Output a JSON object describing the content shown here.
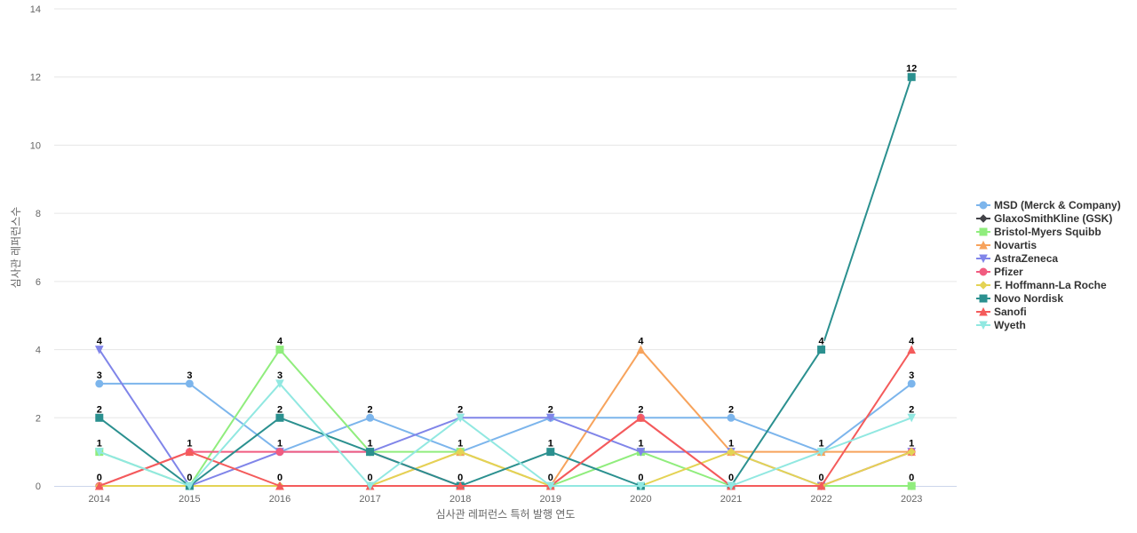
{
  "chart_data": {
    "type": "line",
    "title": "",
    "xlabel": "심사관 레퍼런스 특허 발행 연도",
    "ylabel": "심사관 레퍼런스수",
    "ylim": [
      0,
      14
    ],
    "yticks": [
      0,
      2,
      4,
      6,
      8,
      10,
      12,
      14
    ],
    "grid": true,
    "legend_position": "right",
    "categories": [
      "2014",
      "2015",
      "2016",
      "2017",
      "2018",
      "2019",
      "2020",
      "2021",
      "2022",
      "2023"
    ],
    "series": [
      {
        "name": "MSD (Merck & Company)",
        "color": "#7cb5ec",
        "marker": "circle",
        "values": [
          3,
          3,
          1,
          2,
          1,
          2,
          2,
          2,
          1,
          3
        ]
      },
      {
        "name": "GlaxoSmithKline (GSK)",
        "color": "#434348",
        "marker": "diamond",
        "values": [
          0,
          0,
          0,
          0,
          0,
          0,
          0,
          0,
          0,
          0
        ]
      },
      {
        "name": "Bristol-Myers Squibb",
        "color": "#90ed7d",
        "marker": "square",
        "values": [
          1,
          0,
          4,
          1,
          1,
          0,
          1,
          0,
          0,
          0
        ]
      },
      {
        "name": "Novartis",
        "color": "#f7a35c",
        "marker": "triangle",
        "values": [
          0,
          0,
          0,
          0,
          1,
          0,
          4,
          1,
          1,
          1
        ]
      },
      {
        "name": "AstraZeneca",
        "color": "#8085e9",
        "marker": "triangle-down",
        "values": [
          4,
          0,
          1,
          1,
          2,
          2,
          1,
          1,
          0,
          1
        ]
      },
      {
        "name": "Pfizer",
        "color": "#f15c80",
        "marker": "circle",
        "values": [
          0,
          1,
          1,
          1,
          0,
          0,
          2,
          0,
          0,
          1
        ]
      },
      {
        "name": "F. Hoffmann-La Roche",
        "color": "#e4d354",
        "marker": "diamond",
        "values": [
          0,
          0,
          0,
          0,
          1,
          0,
          0,
          1,
          0,
          1
        ]
      },
      {
        "name": "Novo Nordisk",
        "color": "#2b908f",
        "marker": "square",
        "values": [
          2,
          0,
          2,
          1,
          0,
          1,
          0,
          0,
          4,
          12
        ]
      },
      {
        "name": "Sanofi",
        "color": "#f45b5b",
        "marker": "triangle",
        "values": [
          0,
          1,
          0,
          0,
          0,
          0,
          2,
          0,
          0,
          4
        ]
      },
      {
        "name": "Wyeth",
        "color": "#91e8e1",
        "marker": "triangle-down",
        "values": [
          1,
          0,
          3,
          0,
          2,
          0,
          0,
          0,
          1,
          2
        ]
      }
    ],
    "top_labels": [
      {
        "category": "2014",
        "above": "4",
        "below": "0"
      },
      {
        "category": "2014",
        "mid": [
          "3",
          "2",
          "1"
        ]
      },
      {
        "category": "2015",
        "mid": [
          "3",
          "1"
        ],
        "below": "0"
      },
      {
        "category": "2016",
        "above": "4",
        "mid": [
          "3",
          "1"
        ],
        "below": "0"
      }
    ]
  }
}
